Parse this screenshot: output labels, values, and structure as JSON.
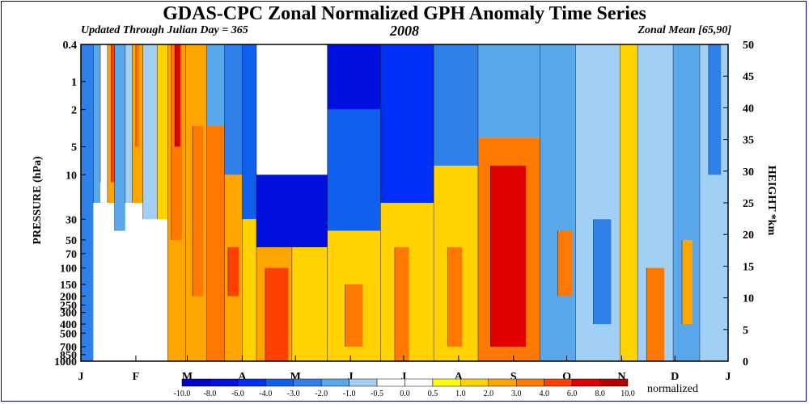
{
  "header": {
    "title": "GDAS-CPC Zonal Normalized GPH Anomaly Time Series",
    "subtitle_left": "Updated Through Julian Day = 365",
    "subtitle_center": "2008",
    "subtitle_right": "Zonal Mean [65,90]"
  },
  "chart_data": {
    "type": "heatmap",
    "title": "GDAS-CPC Zonal Normalized GPH Anomaly Time Series",
    "year": "2008",
    "region": "Zonal Mean [65,90]",
    "x_axis": {
      "quantity": "day of year 2008",
      "range": [
        1,
        366
      ],
      "month_labels": [
        "J",
        "F",
        "M",
        "A",
        "M",
        "J",
        "J",
        "A",
        "S",
        "O",
        "N",
        "D",
        "J"
      ],
      "month_start_days": [
        1,
        32,
        61,
        92,
        122,
        153,
        183,
        214,
        245,
        275,
        306,
        336,
        366
      ]
    },
    "y_axis_left": {
      "label": "PRESSURE (hPa)",
      "scale": "log",
      "range": [
        1000,
        0.4
      ],
      "ticks": [
        0.4,
        1,
        2,
        5,
        10,
        30,
        50,
        70,
        100,
        150,
        200,
        250,
        300,
        400,
        500,
        700,
        850,
        1000
      ],
      "tick_labels": [
        "0.4",
        "1",
        "2",
        "5",
        "10",
        "30",
        "50",
        "70",
        "100",
        "150",
        "200",
        "250",
        "300",
        "400",
        "500",
        "700",
        "850",
        "1000"
      ]
    },
    "y_axis_right": {
      "label": "HEIGHT *km",
      "range": [
        0,
        50
      ],
      "ticks": [
        0,
        5,
        10,
        15,
        20,
        25,
        30,
        35,
        40,
        45,
        50
      ]
    },
    "colorbar": {
      "levels": [
        "-10.0",
        "-8.0",
        "-6.0",
        "-4.0",
        "-3.0",
        "-2.0",
        "-1.0",
        "-0.5",
        "0.0",
        "0.5",
        "1.0",
        "2.0",
        "3.0",
        "4.0",
        "6.0",
        "8.0",
        "10.0"
      ],
      "colors": [
        "#0000c8",
        "#0010e0",
        "#0030f8",
        "#1060f0",
        "#2f80e8",
        "#5aa8ec",
        "#a2d0f5",
        "#ffffff",
        "#ffffff",
        "#ffff00",
        "#ffd200",
        "#ffa500",
        "#ff7800",
        "#ff4000",
        "#e00000",
        "#b40000"
      ],
      "unit": "normalized"
    },
    "blocks": [
      {
        "d0": 1,
        "d1": 8,
        "p_top": 0.4,
        "p_bot": 1000,
        "v": -3
      },
      {
        "d0": 8,
        "d1": 12,
        "p_top": 0.4,
        "p_bot": 20,
        "v": -2
      },
      {
        "d0": 12,
        "d1": 16,
        "p_top": 0.4,
        "p_bot": 12,
        "v": 0
      },
      {
        "d0": 16,
        "d1": 20,
        "p_top": 0.4,
        "p_bot": 20,
        "v": 2
      },
      {
        "d0": 18,
        "d1": 20,
        "p_top": 0.4,
        "p_bot": 12,
        "v": 4
      },
      {
        "d0": 20,
        "d1": 26,
        "p_top": 0.4,
        "p_bot": 40,
        "v": -2
      },
      {
        "d0": 26,
        "d1": 30,
        "p_top": 0.4,
        "p_bot": 20,
        "v": -1
      },
      {
        "d0": 30,
        "d1": 36,
        "p_top": 0.4,
        "p_bot": 20,
        "v": 2
      },
      {
        "d0": 32,
        "d1": 34,
        "p_top": 0.4,
        "p_bot": 5,
        "v": 3
      },
      {
        "d0": 36,
        "d1": 44,
        "p_top": 0.4,
        "p_bot": 30,
        "v": -1
      },
      {
        "d0": 44,
        "d1": 50,
        "p_top": 0.4,
        "p_bot": 30,
        "v": 1
      },
      {
        "d0": 50,
        "d1": 60,
        "p_top": 0.4,
        "p_bot": 1000,
        "v": 2
      },
      {
        "d0": 52,
        "d1": 58,
        "p_top": 0.4,
        "p_bot": 50,
        "v": 3
      },
      {
        "d0": 54,
        "d1": 57,
        "p_top": 0.4,
        "p_bot": 5,
        "v": 6
      },
      {
        "d0": 60,
        "d1": 72,
        "p_top": 0.4,
        "p_bot": 1000,
        "v": 2
      },
      {
        "d0": 64,
        "d1": 70,
        "p_top": 3,
        "p_bot": 200,
        "v": 3
      },
      {
        "d0": 72,
        "d1": 82,
        "p_top": 3,
        "p_bot": 1000,
        "v": 3
      },
      {
        "d0": 72,
        "d1": 82,
        "p_top": 0.4,
        "p_bot": 3,
        "v": -2
      },
      {
        "d0": 82,
        "d1": 92,
        "p_top": 10,
        "p_bot": 1000,
        "v": 2
      },
      {
        "d0": 84,
        "d1": 90,
        "p_top": 60,
        "p_bot": 200,
        "v": 4
      },
      {
        "d0": 82,
        "d1": 92,
        "p_top": 0.4,
        "p_bot": 10,
        "v": -3
      },
      {
        "d0": 92,
        "d1": 100,
        "p_top": 0.4,
        "p_bot": 30,
        "v": -4
      },
      {
        "d0": 92,
        "d1": 100,
        "p_top": 30,
        "p_bot": 1000,
        "v": 1
      },
      {
        "d0": 100,
        "d1": 140,
        "p_top": 0.4,
        "p_bot": 10,
        "v": -0.3
      },
      {
        "d0": 100,
        "d1": 140,
        "p_top": 10,
        "p_bot": 60,
        "v": -8
      },
      {
        "d0": 100,
        "d1": 120,
        "p_top": 60,
        "p_bot": 1000,
        "v": 2
      },
      {
        "d0": 105,
        "d1": 118,
        "p_top": 100,
        "p_bot": 1000,
        "v": 4
      },
      {
        "d0": 120,
        "d1": 140,
        "p_top": 60,
        "p_bot": 1000,
        "v": 1
      },
      {
        "d0": 140,
        "d1": 170,
        "p_top": 0.4,
        "p_bot": 2,
        "v": -8
      },
      {
        "d0": 140,
        "d1": 170,
        "p_top": 2,
        "p_bot": 40,
        "v": -4
      },
      {
        "d0": 140,
        "d1": 170,
        "p_top": 40,
        "p_bot": 1000,
        "v": 1
      },
      {
        "d0": 150,
        "d1": 160,
        "p_top": 150,
        "p_bot": 700,
        "v": 3
      },
      {
        "d0": 170,
        "d1": 200,
        "p_top": 0.4,
        "p_bot": 20,
        "v": -6
      },
      {
        "d0": 170,
        "d1": 200,
        "p_top": 20,
        "p_bot": 1000,
        "v": 1
      },
      {
        "d0": 178,
        "d1": 186,
        "p_top": 60,
        "p_bot": 1000,
        "v": 3
      },
      {
        "d0": 200,
        "d1": 225,
        "p_top": 0.4,
        "p_bot": 8,
        "v": -3
      },
      {
        "d0": 200,
        "d1": 225,
        "p_top": 8,
        "p_bot": 1000,
        "v": 1
      },
      {
        "d0": 208,
        "d1": 216,
        "p_top": 60,
        "p_bot": 700,
        "v": 3
      },
      {
        "d0": 225,
        "d1": 260,
        "p_top": 0.4,
        "p_bot": 4,
        "v": -2
      },
      {
        "d0": 225,
        "d1": 260,
        "p_top": 4,
        "p_bot": 1000,
        "v": 3
      },
      {
        "d0": 232,
        "d1": 252,
        "p_top": 8,
        "p_bot": 700,
        "v": 6
      },
      {
        "d0": 260,
        "d1": 280,
        "p_top": 0.4,
        "p_bot": 1000,
        "v": -2
      },
      {
        "d0": 270,
        "d1": 278,
        "p_top": 40,
        "p_bot": 200,
        "v": 3
      },
      {
        "d0": 280,
        "d1": 305,
        "p_top": 0.4,
        "p_bot": 1000,
        "v": -1
      },
      {
        "d0": 290,
        "d1": 300,
        "p_top": 30,
        "p_bot": 400,
        "v": -3
      },
      {
        "d0": 305,
        "d1": 315,
        "p_top": 0.4,
        "p_bot": 1000,
        "v": 1
      },
      {
        "d0": 315,
        "d1": 335,
        "p_top": 0.4,
        "p_bot": 1000,
        "v": -1
      },
      {
        "d0": 320,
        "d1": 330,
        "p_top": 100,
        "p_bot": 1000,
        "v": 3
      },
      {
        "d0": 335,
        "d1": 350,
        "p_top": 0.4,
        "p_bot": 1000,
        "v": -2
      },
      {
        "d0": 340,
        "d1": 346,
        "p_top": 50,
        "p_bot": 400,
        "v": 2
      },
      {
        "d0": 350,
        "d1": 366,
        "p_top": 0.4,
        "p_bot": 1000,
        "v": -1
      },
      {
        "d0": 355,
        "d1": 362,
        "p_top": 0.4,
        "p_bot": 10,
        "v": -3
      }
    ]
  }
}
